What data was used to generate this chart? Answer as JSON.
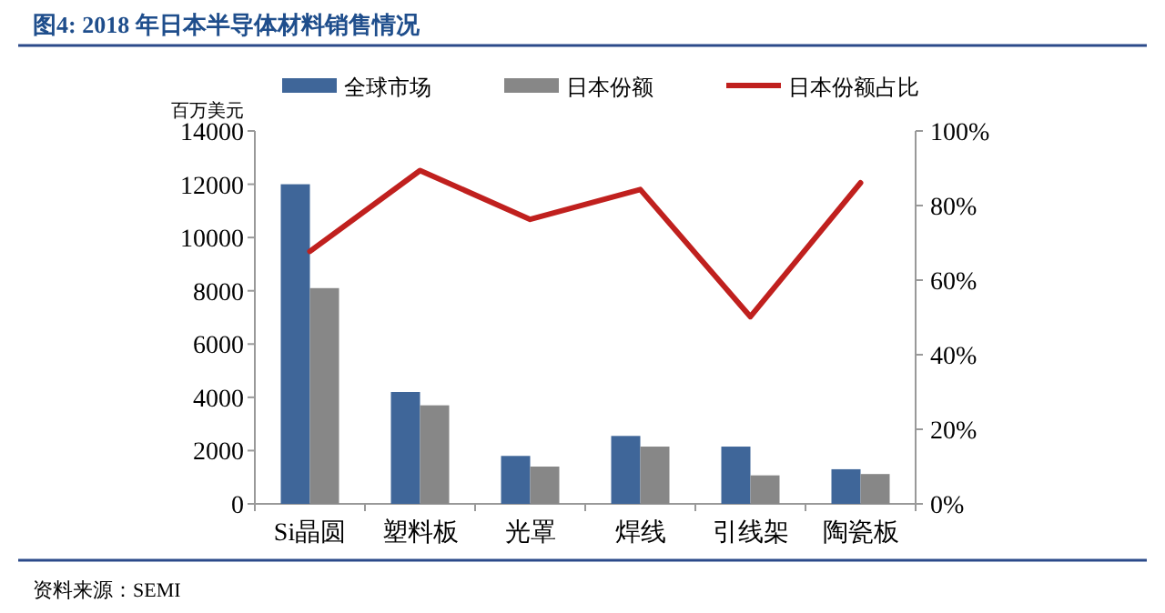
{
  "chart_data": {
    "type": "bar",
    "title": "图4: 2018 年日本半导体材料销售情况",
    "ylabel": "百万美元",
    "categories": [
      "Si晶圆",
      "塑料板",
      "光罩",
      "焊线",
      "引线架",
      "陶瓷板"
    ],
    "series": [
      {
        "name": "全球市场",
        "color": "#3f6699",
        "values": [
          12000,
          4200,
          1800,
          2550,
          2150,
          1300
        ]
      },
      {
        "name": "日本份额",
        "color": "#878787",
        "values": [
          8100,
          3700,
          1400,
          2150,
          1070,
          1120
        ]
      },
      {
        "name": "日本份额占比",
        "type": "line",
        "axis": "y2",
        "color": "#c0201e",
        "values": [
          67.7,
          89.4,
          76.3,
          84.3,
          50.2,
          86.1
        ]
      }
    ],
    "ylim": [
      0,
      14000
    ],
    "yticks": [
      0,
      2000,
      4000,
      6000,
      8000,
      10000,
      12000,
      14000
    ],
    "y2lim": [
      0,
      100
    ],
    "y2ticks": [
      {
        "value": 0,
        "label": "0%"
      },
      {
        "value": 20,
        "label": "20%"
      },
      {
        "value": 40,
        "label": "40%"
      },
      {
        "value": 60,
        "label": "60%"
      },
      {
        "value": 80,
        "label": "80%"
      },
      {
        "value": 100,
        "label": "100%"
      }
    ],
    "legend": "top",
    "grid": false,
    "annotations": [
      "资料来源：SEMI"
    ]
  }
}
